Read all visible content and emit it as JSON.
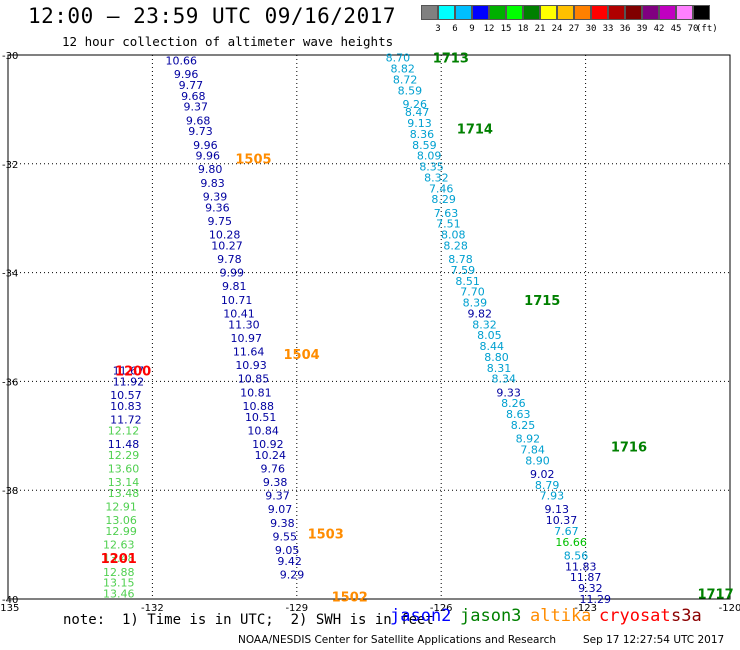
{
  "header": {
    "title": "12:00 — 23:59 UTC 09/16/2017",
    "subtitle": "12 hour collection of altimeter wave heights"
  },
  "colorbar": {
    "colors": [
      "#808080",
      "#00ffff",
      "#00bfff",
      "#0000ff",
      "#00b000",
      "#00ff00",
      "#008000",
      "#ffff00",
      "#ffc000",
      "#ff8000",
      "#ff0000",
      "#b00000",
      "#800000",
      "#800080",
      "#c000c0",
      "#ff80ff",
      "#000000"
    ],
    "labels": [
      "3",
      "6",
      "9",
      "12",
      "15",
      "18",
      "21",
      "24",
      "27",
      "30",
      "33",
      "36",
      "39",
      "42",
      "45",
      "70"
    ],
    "unit": "(ft)"
  },
  "footer": {
    "note": "note:  1) Time is in UTC;  2) SWH is in feet",
    "legend": [
      {
        "name": "jason2",
        "color": "#0000ff"
      },
      {
        "name": "jason3",
        "color": "#008000"
      },
      {
        "name": "altika",
        "color": "#ff8c00"
      },
      {
        "name": "cryosat",
        "color": "#ff0000"
      },
      {
        "name": "s3a",
        "color": "#8b0000"
      }
    ],
    "credit": "NOAA/NESDIS Center for Satellite Applications and Research",
    "timestamp": "Sep 17 12:27:54 UTC 2017"
  },
  "chart_data": {
    "type": "scatter",
    "title": "12:00 — 23:59 UTC 09/16/2017",
    "subtitle": "12 hour collection of altimeter wave heights",
    "xlim": [
      -135,
      -120
    ],
    "ylim": [
      -40,
      -30
    ],
    "x_ticks": [
      "-135",
      "-132",
      "-129",
      "-126",
      "-123",
      "-120"
    ],
    "y_ticks": [
      "-30",
      "-32",
      "-34",
      "-36",
      "-38",
      "-40"
    ],
    "grid": true,
    "tracks": [
      {
        "satellite": "altika",
        "color": "#0000a0",
        "points": [
          {
            "x": -131.4,
            "y": -30.1,
            "v": "10.66"
          },
          {
            "x": -131.3,
            "y": -30.35,
            "v": "9.96"
          },
          {
            "x": -131.2,
            "y": -30.55,
            "v": "9.77"
          },
          {
            "x": -131.15,
            "y": -30.75,
            "v": "9.68"
          },
          {
            "x": -131.1,
            "y": -30.95,
            "v": "9.37"
          },
          {
            "x": -131.05,
            "y": -31.2,
            "v": "9.68"
          },
          {
            "x": -131.0,
            "y": -31.4,
            "v": "9.73"
          },
          {
            "x": -130.9,
            "y": -31.65,
            "v": "9.96"
          },
          {
            "x": -130.85,
            "y": -31.85,
            "v": "9.96"
          },
          {
            "x": -130.8,
            "y": -32.1,
            "v": "9.80"
          },
          {
            "x": -130.75,
            "y": -32.35,
            "v": "9.83"
          },
          {
            "x": -130.7,
            "y": -32.6,
            "v": "9.39"
          },
          {
            "x": -130.65,
            "y": -32.8,
            "v": "9.36"
          },
          {
            "x": -130.6,
            "y": -33.05,
            "v": "9.75"
          },
          {
            "x": -130.5,
            "y": -33.3,
            "v": "10.28"
          },
          {
            "x": -130.45,
            "y": -33.5,
            "v": "10.27"
          },
          {
            "x": -130.4,
            "y": -33.75,
            "v": "9.78"
          },
          {
            "x": -130.35,
            "y": -34.0,
            "v": "9.99"
          },
          {
            "x": -130.3,
            "y": -34.25,
            "v": "9.81"
          },
          {
            "x": -130.25,
            "y": -34.5,
            "v": "10.71"
          },
          {
            "x": -130.2,
            "y": -34.75,
            "v": "10.41"
          },
          {
            "x": -130.1,
            "y": -34.95,
            "v": "11.30"
          },
          {
            "x": -130.05,
            "y": -35.2,
            "v": "10.97"
          },
          {
            "x": -130.0,
            "y": -35.45,
            "v": "11.64"
          },
          {
            "x": -129.95,
            "y": -35.7,
            "v": "10.93"
          },
          {
            "x": -129.9,
            "y": -35.95,
            "v": "10.85"
          },
          {
            "x": -129.85,
            "y": -36.2,
            "v": "10.81"
          },
          {
            "x": -129.8,
            "y": -36.45,
            "v": "10.88"
          },
          {
            "x": -129.75,
            "y": -36.65,
            "v": "10.51"
          },
          {
            "x": -129.7,
            "y": -36.9,
            "v": "10.84"
          },
          {
            "x": -129.6,
            "y": -37.15,
            "v": "10.92"
          },
          {
            "x": -129.55,
            "y": -37.35,
            "v": "10.24"
          },
          {
            "x": -129.5,
            "y": -37.6,
            "v": "9.76"
          },
          {
            "x": -129.45,
            "y": -37.85,
            "v": "9.38"
          },
          {
            "x": -129.4,
            "y": -38.1,
            "v": "9.37"
          },
          {
            "x": -129.35,
            "y": -38.35,
            "v": "9.07"
          },
          {
            "x": -129.3,
            "y": -38.6,
            "v": "9.38"
          },
          {
            "x": -129.25,
            "y": -38.85,
            "v": "9.55"
          },
          {
            "x": -129.2,
            "y": -39.1,
            "v": "9.05"
          },
          {
            "x": -129.15,
            "y": -39.3,
            "v": "9.42"
          },
          {
            "x": -129.1,
            "y": -39.55,
            "v": "9.29"
          }
        ]
      },
      {
        "satellite": "jason3",
        "color": "#00a0d0",
        "points": [
          {
            "x": -126.9,
            "y": -30.05,
            "v": "8.70"
          },
          {
            "x": -126.8,
            "y": -30.25,
            "v": "8.82"
          },
          {
            "x": -126.75,
            "y": -30.45,
            "v": "8.72"
          },
          {
            "x": -126.65,
            "y": -30.65,
            "v": "8.59"
          },
          {
            "x": -126.55,
            "y": -30.9,
            "v": "9.26"
          },
          {
            "x": -126.5,
            "y": -31.05,
            "v": "8.47"
          },
          {
            "x": -126.45,
            "y": -31.25,
            "v": "9.13"
          },
          {
            "x": -126.4,
            "y": -31.45,
            "v": "8.36"
          },
          {
            "x": -126.35,
            "y": -31.65,
            "v": "8.59"
          },
          {
            "x": -126.25,
            "y": -31.85,
            "v": "8.09"
          },
          {
            "x": -126.2,
            "y": -32.05,
            "v": "8.35"
          },
          {
            "x": -126.1,
            "y": -32.25,
            "v": "8.32"
          },
          {
            "x": -126.0,
            "y": -32.45,
            "v": "7.46"
          },
          {
            "x": -125.95,
            "y": -32.65,
            "v": "8.29"
          },
          {
            "x": -125.9,
            "y": -32.9,
            "v": "7.63"
          },
          {
            "x": -125.85,
            "y": -33.1,
            "v": "7.51"
          },
          {
            "x": -125.75,
            "y": -33.3,
            "v": "8.08"
          },
          {
            "x": -125.7,
            "y": -33.5,
            "v": "8.28"
          },
          {
            "x": -125.6,
            "y": -33.75,
            "v": "8.78"
          },
          {
            "x": -125.55,
            "y": -33.95,
            "v": "7.59"
          },
          {
            "x": -125.45,
            "y": -34.15,
            "v": "8.51"
          },
          {
            "x": -125.35,
            "y": -34.35,
            "v": "7.70"
          },
          {
            "x": -125.3,
            "y": -34.55,
            "v": "8.39"
          }
        ]
      }
    ],
    "passes": [
      {
        "label": "1713",
        "x": -125.8,
        "y": -30.05,
        "satellite": "jason3"
      },
      {
        "label": "1714",
        "x": -125.3,
        "y": -31.35,
        "satellite": "jason3"
      },
      {
        "label": "1715",
        "x": -123.9,
        "y": -34.5,
        "satellite": "jason3"
      },
      {
        "label": "1716",
        "x": -122.1,
        "y": -37.2,
        "satellite": "jason3"
      },
      {
        "label": "1717",
        "x": -120.3,
        "y": -39.9,
        "satellite": "jason3"
      },
      {
        "label": "1505",
        "x": -129.9,
        "y": -31.9,
        "satellite": "altika"
      },
      {
        "label": "1504",
        "x": -128.9,
        "y": -35.5,
        "satellite": "altika"
      },
      {
        "label": "1503",
        "x": -128.4,
        "y": -38.8,
        "satellite": "altika"
      },
      {
        "label": "1502",
        "x": -127.9,
        "y": -39.95,
        "satellite": "altika"
      },
      {
        "label": "1200",
        "x": -132.4,
        "y": -35.8,
        "satellite": "cryosat"
      },
      {
        "label": "1201",
        "x": -132.7,
        "y": -39.25,
        "satellite": "cryosat"
      }
    ]
  }
}
